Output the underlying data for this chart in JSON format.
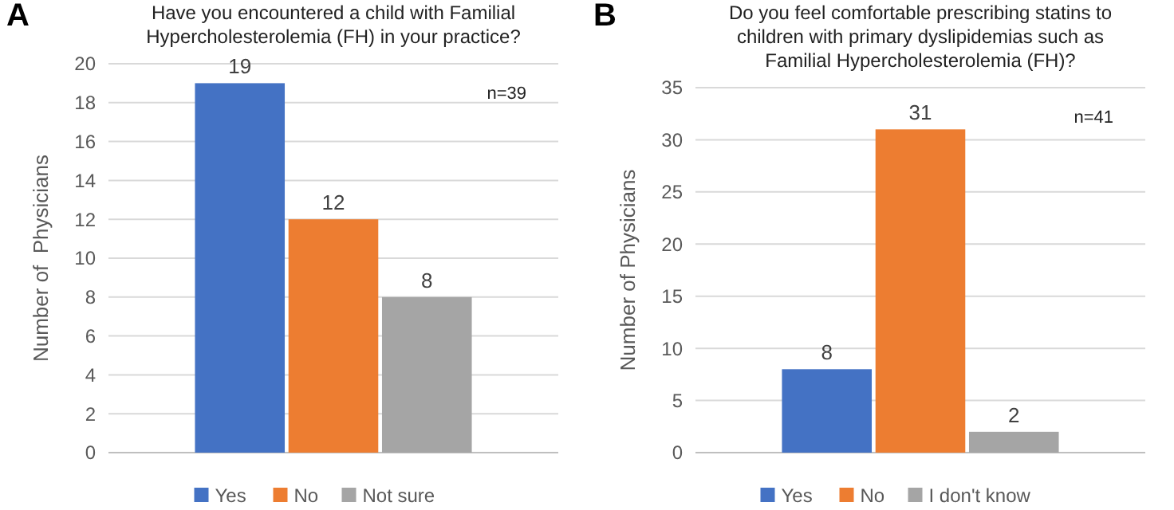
{
  "chart_data": [
    {
      "type": "bar",
      "title": "Have you encountered a child with Familial Hypercholesterolemia (FH) in your practice?",
      "ylabel": "Number of  Physicians",
      "categories": [
        null
      ],
      "series": [
        {
          "name": "Yes",
          "color": "#4472c4",
          "values": [
            19
          ]
        },
        {
          "name": "No",
          "color": "#ed7d31",
          "values": [
            12
          ]
        },
        {
          "name": "Not sure",
          "color": "#a5a5a5",
          "values": [
            8
          ]
        }
      ],
      "ylim": [
        0,
        20
      ],
      "yticks": [
        0,
        2,
        4,
        6,
        8,
        10,
        12,
        14,
        16,
        18,
        20
      ],
      "grid": "y",
      "legend": "bottom",
      "data_labels": true,
      "annotations": [
        "A",
        "n=39"
      ]
    },
    {
      "type": "bar",
      "title": "Do you feel comfortable prescribing statins to children with primary dyslipidemias such as Familial Hypercholesterolemia (FH)?",
      "ylabel": "Number of Physicians",
      "categories": [
        null
      ],
      "series": [
        {
          "name": "Yes",
          "color": "#4472c4",
          "values": [
            8
          ]
        },
        {
          "name": "No",
          "color": "#ed7d31",
          "values": [
            31
          ]
        },
        {
          "name": "I don't know",
          "color": "#a5a5a5",
          "values": [
            2
          ]
        }
      ],
      "ylim": [
        0,
        35
      ],
      "yticks": [
        0,
        5,
        10,
        15,
        20,
        25,
        30,
        35
      ],
      "grid": "y",
      "legend": "bottom",
      "data_labels": true,
      "annotations": [
        "B",
        "n=41"
      ]
    }
  ]
}
